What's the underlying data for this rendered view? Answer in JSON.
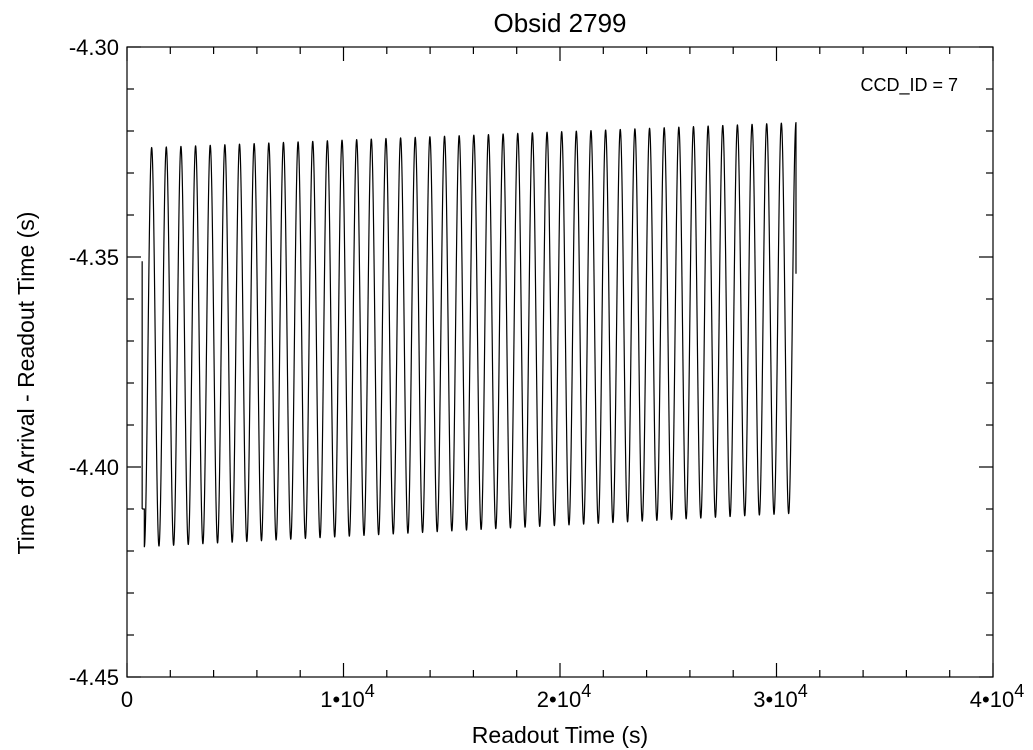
{
  "chart_data": {
    "type": "line",
    "title": "Obsid 2799",
    "xlabel": "Readout Time (s)",
    "ylabel": "Time of Arrival - Readout Time (s)",
    "xlim": [
      0,
      40000
    ],
    "ylim": [
      -4.45,
      -4.3
    ],
    "x_ticks": [
      {
        "value": 0,
        "mantissa": "0",
        "exponent": ""
      },
      {
        "value": 10000,
        "mantissa": "1•10",
        "exponent": "4"
      },
      {
        "value": 20000,
        "mantissa": "2•10",
        "exponent": "4"
      },
      {
        "value": 30000,
        "mantissa": "3•10",
        "exponent": "4"
      },
      {
        "value": 40000,
        "mantissa": "4•10",
        "exponent": "4"
      }
    ],
    "x_minor_step": 2000,
    "y_ticks": [
      {
        "value": -4.3,
        "label": "-4.30"
      },
      {
        "value": -4.35,
        "label": "-4.35"
      },
      {
        "value": -4.4,
        "label": "-4.40"
      },
      {
        "value": -4.45,
        "label": "-4.45"
      }
    ],
    "y_minor_step": 0.01,
    "grid": false,
    "annotation": "CCD_ID = 7",
    "annotation_placement": "top-right",
    "series": [
      {
        "style": "solid",
        "color": "#000000",
        "segments": [
          {
            "x": [
              700,
              700
            ],
            "y": [
              -4.351,
              -4.41
            ]
          },
          {
            "x": [
              700,
              800
            ],
            "y": [
              -4.41,
              -4.41
            ]
          }
        ],
        "oscillation": {
          "x_start": 800,
          "x_end": 30900,
          "n_cycles": 44,
          "first_min_x": 800,
          "min_start": -4.419,
          "min_end": -4.411,
          "max_start": -4.324,
          "max_end": -4.318,
          "end_y": -4.354
        }
      }
    ]
  }
}
